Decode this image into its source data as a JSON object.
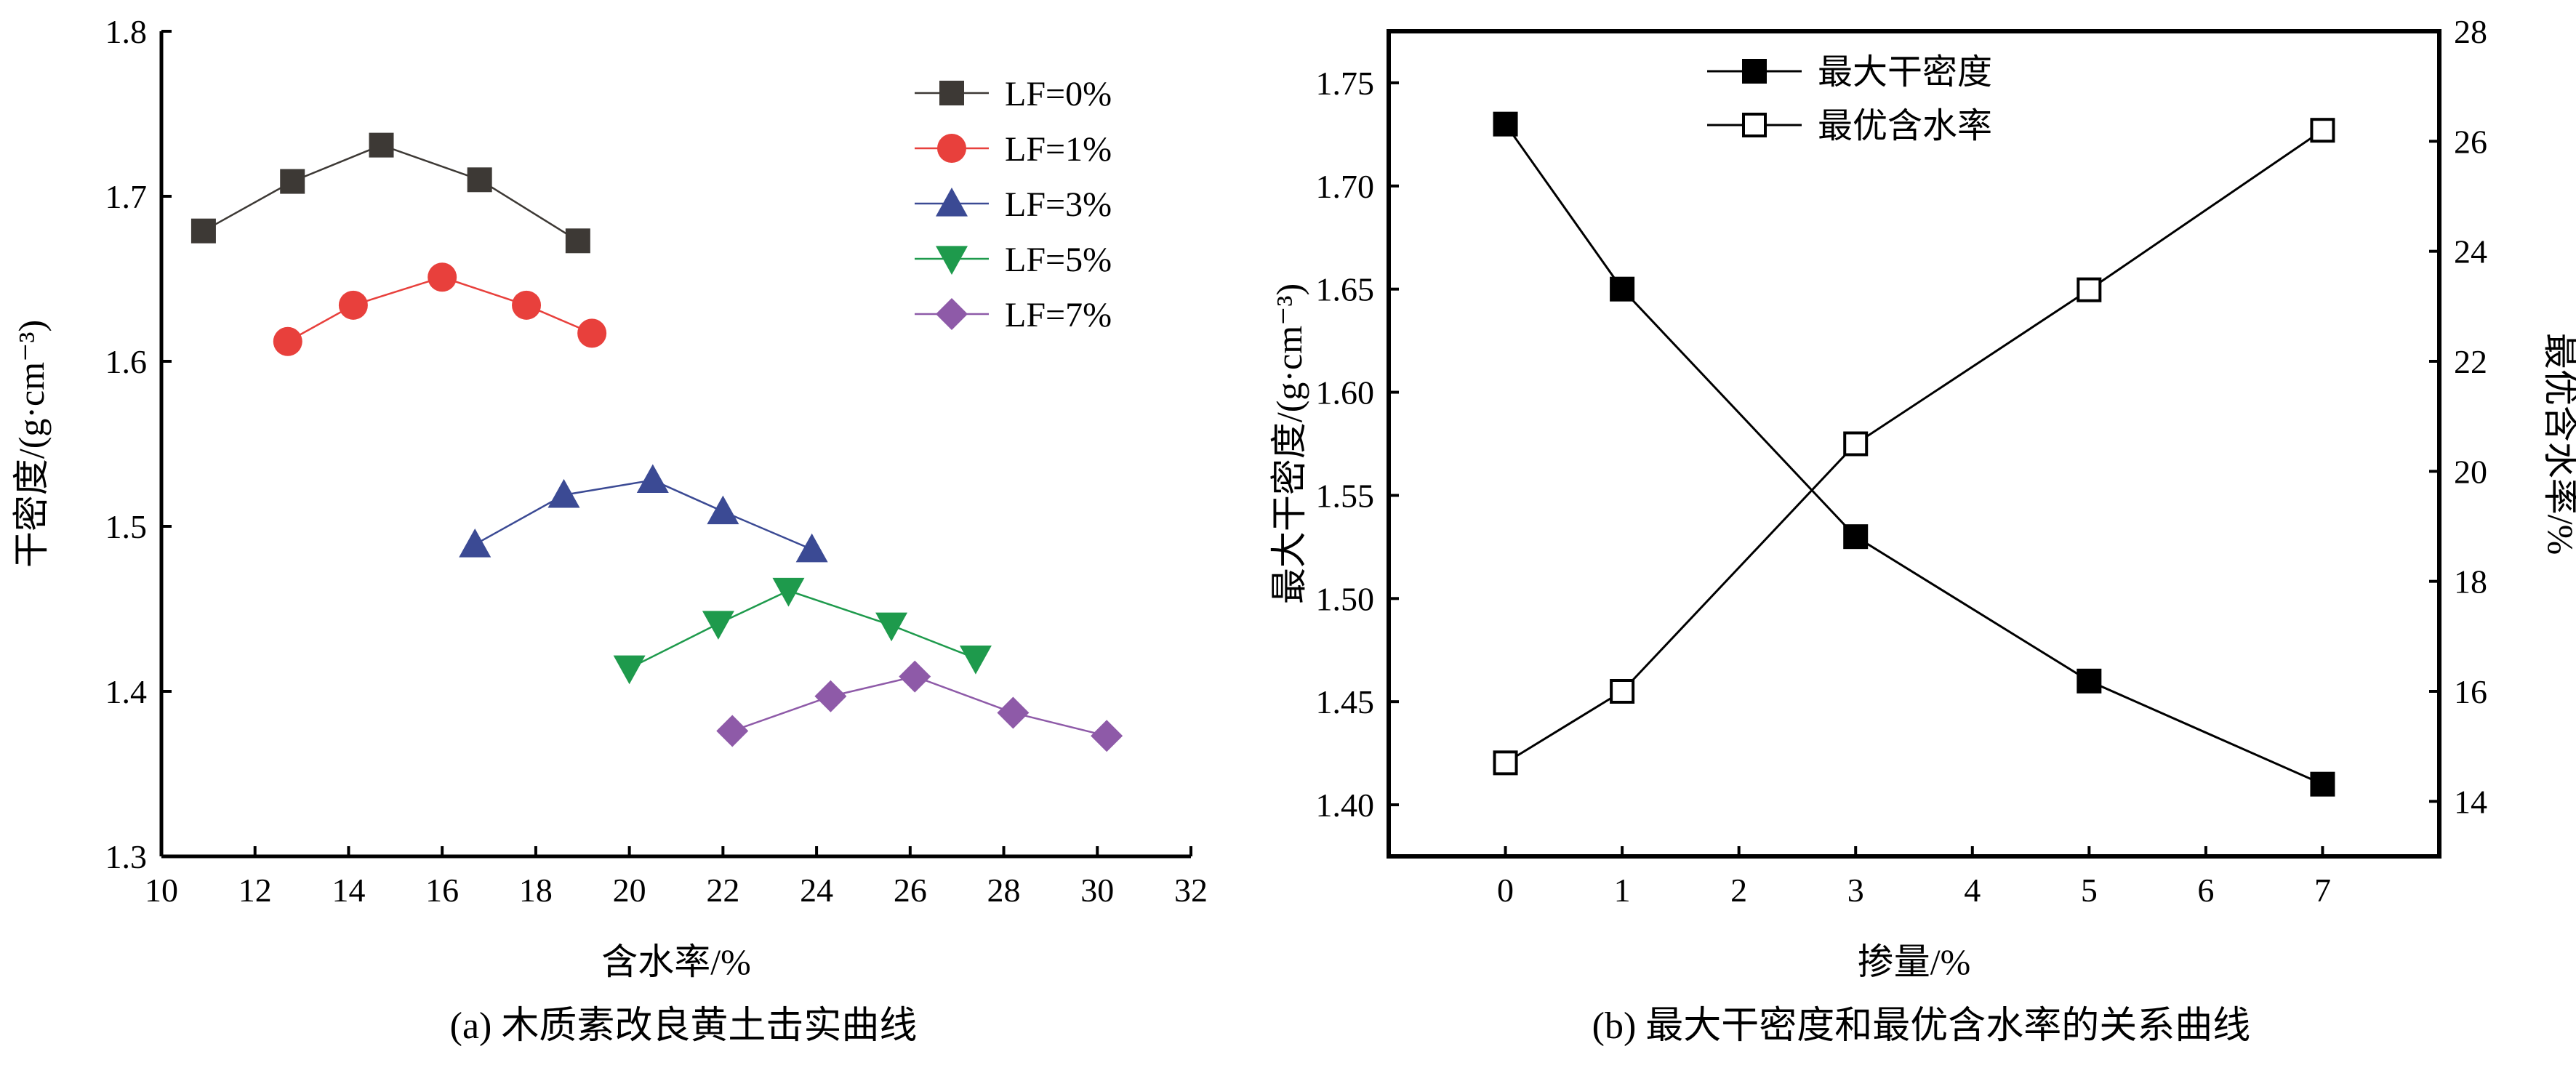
{
  "chart_data": [
    {
      "type": "line",
      "caption": "(a) 木质素改良黄土击实曲线",
      "xlabel": "含水率/%",
      "ylabel": "干密度/(g·cm⁻³)",
      "xlim": [
        10,
        32
      ],
      "ylim": [
        1.3,
        1.8
      ],
      "xticks": [
        "10",
        "12",
        "14",
        "16",
        "18",
        "20",
        "22",
        "24",
        "26",
        "28",
        "30",
        "32"
      ],
      "yticks": [
        "1.3",
        "1.4",
        "1.5",
        "1.6",
        "1.7",
        "1.8"
      ],
      "legend_position": "top-right",
      "series": [
        {
          "name": "LF=0%",
          "marker": "square",
          "color": "#3d3935",
          "x": [
            10.9,
            12.8,
            14.7,
            16.8,
            18.9
          ],
          "y": [
            1.679,
            1.709,
            1.731,
            1.71,
            1.673
          ]
        },
        {
          "name": "LF=1%",
          "marker": "circle",
          "color": "#e8403c",
          "x": [
            12.7,
            14.1,
            16.0,
            17.8,
            19.2
          ],
          "y": [
            1.612,
            1.634,
            1.651,
            1.634,
            1.617
          ]
        },
        {
          "name": "LF=3%",
          "marker": "triangle-up",
          "color": "#3b4a94",
          "x": [
            16.7,
            18.6,
            20.5,
            22.0,
            23.9
          ],
          "y": [
            1.489,
            1.519,
            1.528,
            1.509,
            1.486
          ]
        },
        {
          "name": "LF=5%",
          "marker": "triangle-down",
          "color": "#1e9a4c",
          "x": [
            20.0,
            21.9,
            23.4,
            25.6,
            27.4
          ],
          "y": [
            1.414,
            1.441,
            1.461,
            1.44,
            1.42
          ]
        },
        {
          "name": "LF=7%",
          "marker": "diamond",
          "color": "#8e5aa8",
          "x": [
            22.2,
            24.3,
            26.1,
            28.2,
            30.2
          ],
          "y": [
            1.376,
            1.397,
            1.409,
            1.387,
            1.373
          ]
        }
      ]
    },
    {
      "type": "line",
      "caption": "(b) 最大干密度和最优含水率的关系曲线",
      "xlabel": "掺量/%",
      "ylabel_left": "最大干密度/(g·cm⁻³)",
      "ylabel_right": "最优含水率/%",
      "xlim": [
        -1,
        8
      ],
      "ylim_left": [
        1.375,
        1.775
      ],
      "ylim_right": [
        13,
        28
      ],
      "xticks": [
        "0",
        "1",
        "2",
        "3",
        "4",
        "5",
        "6",
        "7"
      ],
      "yticks_left": [
        "1.40",
        "1.45",
        "1.50",
        "1.55",
        "1.60",
        "1.65",
        "1.70",
        "1.75"
      ],
      "yticks_right": [
        "14",
        "16",
        "18",
        "20",
        "22",
        "24",
        "26",
        "28"
      ],
      "legend_position": "top-left",
      "series": [
        {
          "name": "最大干密度",
          "axis": "left",
          "marker": "filled-square",
          "color": "#000000",
          "x": [
            0,
            1,
            3,
            5,
            7
          ],
          "y": [
            1.73,
            1.65,
            1.53,
            1.46,
            1.41
          ]
        },
        {
          "name": "最优含水率",
          "axis": "right",
          "marker": "open-square",
          "color": "#000000",
          "x": [
            0,
            1,
            3,
            5,
            7
          ],
          "y": [
            14.7,
            16.0,
            20.5,
            23.3,
            26.2
          ]
        }
      ]
    }
  ]
}
